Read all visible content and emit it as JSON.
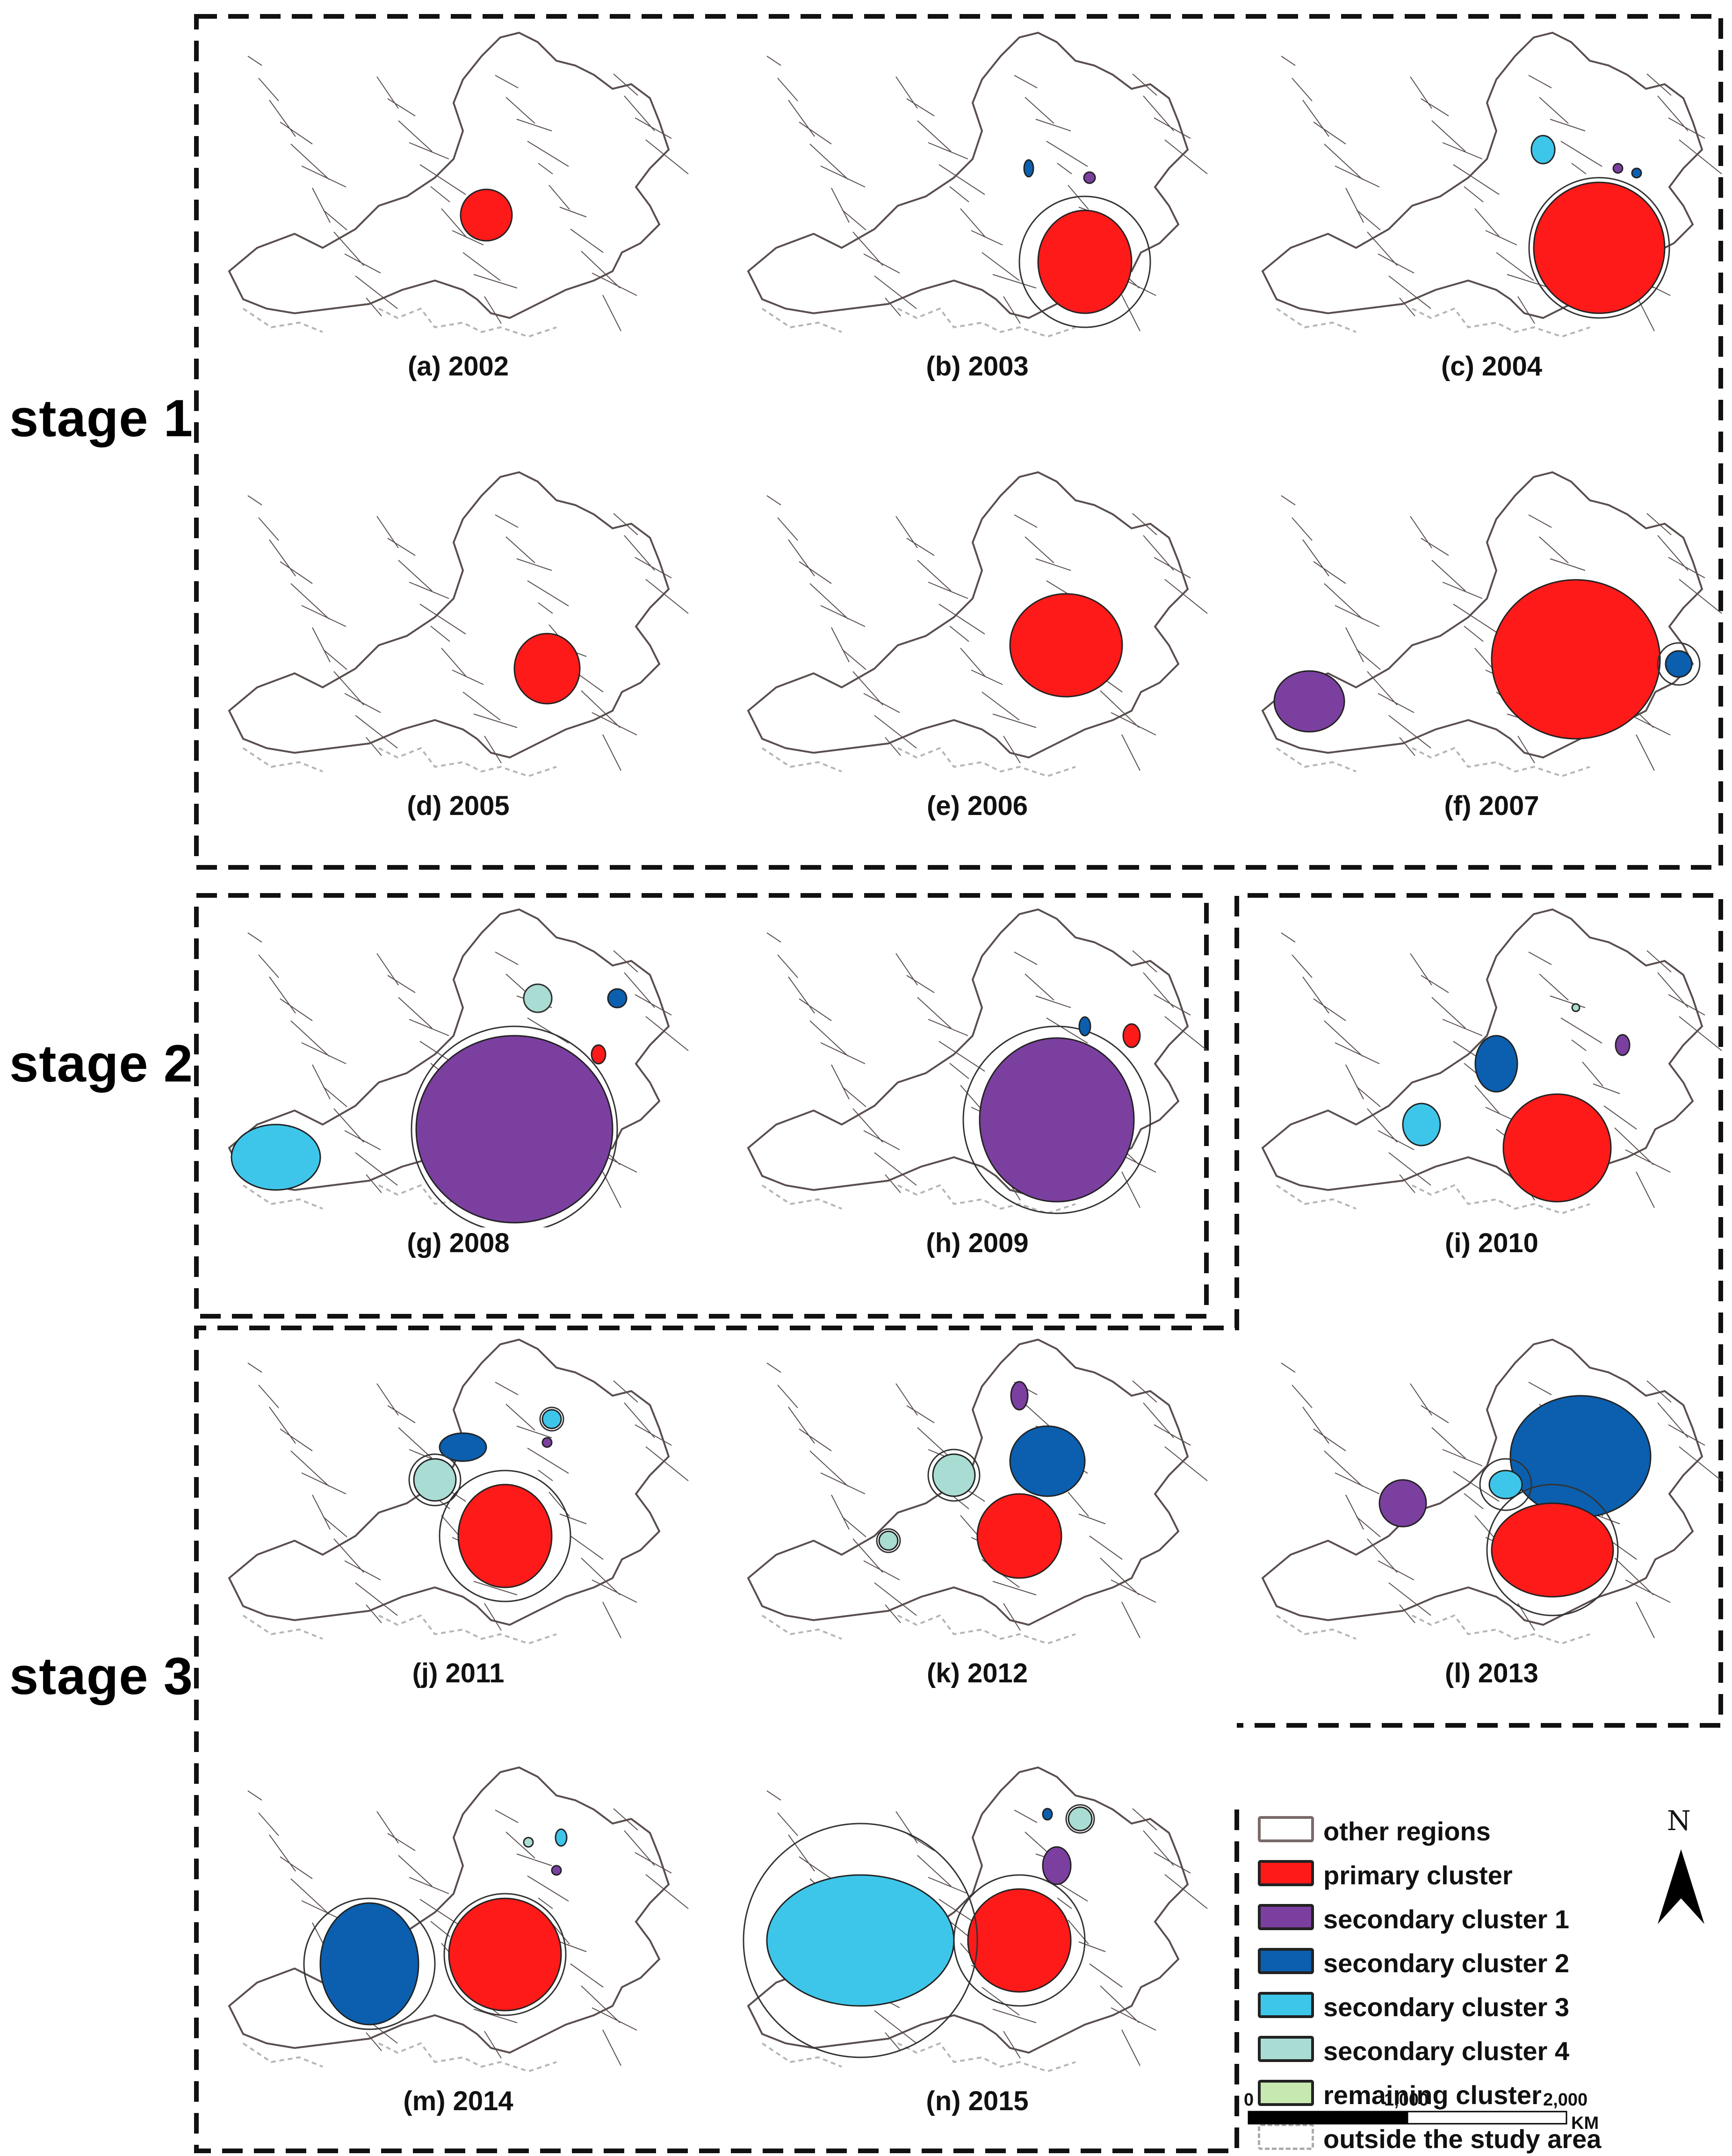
{
  "stages": [
    {
      "id": "stage1",
      "label": "stage 1"
    },
    {
      "id": "stage2",
      "label": "stage 2"
    },
    {
      "id": "stage3",
      "label": "stage 3"
    }
  ],
  "panels": [
    {
      "caption": "(a) 2002"
    },
    {
      "caption": "(b) 2003"
    },
    {
      "caption": "(c) 2004"
    },
    {
      "caption": "(d) 2005"
    },
    {
      "caption": "(e) 2006"
    },
    {
      "caption": "(f) 2007"
    },
    {
      "caption": "(g) 2008"
    },
    {
      "caption": "(h) 2009"
    },
    {
      "caption": "(i) 2010"
    },
    {
      "caption": "(j) 2011"
    },
    {
      "caption": "(k) 2012"
    },
    {
      "caption": "(l) 2013"
    },
    {
      "caption": "(m) 2014"
    },
    {
      "caption": "(n) 2015"
    }
  ],
  "legend": {
    "items": [
      {
        "label": "other regions",
        "fill": "#ffffff",
        "stroke": "#7a6a6a",
        "dashed": false
      },
      {
        "label": "primary cluster",
        "fill": "#ff1a1a",
        "stroke": "#222222",
        "dashed": false
      },
      {
        "label": "secondary cluster 1",
        "fill": "#7b3fa0",
        "stroke": "#222222",
        "dashed": false
      },
      {
        "label": "secondary cluster 2",
        "fill": "#0b5fae",
        "stroke": "#222222",
        "dashed": false
      },
      {
        "label": "secondary cluster 3",
        "fill": "#3ec6ea",
        "stroke": "#222222",
        "dashed": false
      },
      {
        "label": "secondary cluster 4",
        "fill": "#a9dcd2",
        "stroke": "#222222",
        "dashed": false
      },
      {
        "label": "remaining cluster",
        "fill": "#c7e8b0",
        "stroke": "#222222",
        "dashed": false
      },
      {
        "label": "outside the study area",
        "fill": "#ffffff",
        "stroke": "#aaaaaa",
        "dashed": true
      }
    ]
  },
  "north_arrow": {
    "letter": "N"
  },
  "scale_bar": {
    "ticks": [
      "0",
      "1,000",
      "2,000"
    ],
    "unit": "KM"
  },
  "colors": {
    "primary": "#ff1a1a",
    "secondary1": "#7b3fa0",
    "secondary2": "#0b5fae",
    "secondary3": "#3ec6ea",
    "secondary4": "#a9dcd2",
    "remaining": "#c7e8b0",
    "region_line": "#5a4e4e",
    "outside_line": "#b5b5b5"
  }
}
